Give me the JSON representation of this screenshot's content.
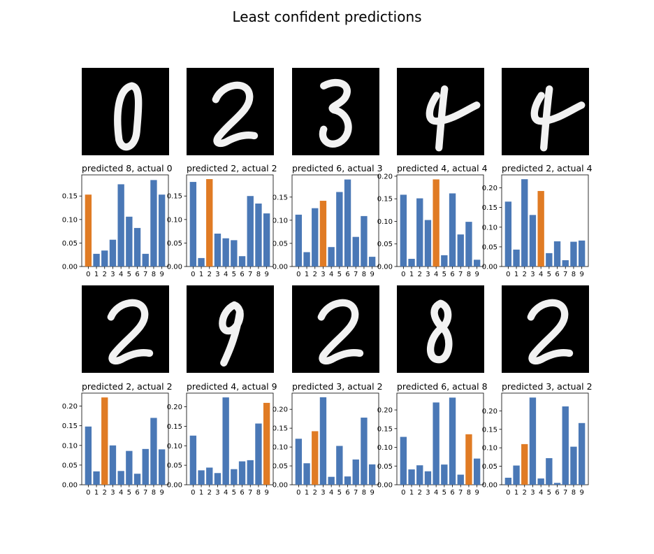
{
  "figure_title": "Least confident predictions",
  "colors": {
    "bar": "#4a78b6",
    "highlight": "#e07b24",
    "image_bg": "#000000",
    "stroke": "#f2f2f2"
  },
  "chart_data": [
    {
      "type": "bar",
      "title": "predicted 8, actual 0",
      "digit_image": "0",
      "predicted": 8,
      "actual": 0,
      "categories": [
        "0",
        "1",
        "2",
        "3",
        "4",
        "5",
        "6",
        "7",
        "8",
        "9"
      ],
      "values": [
        0.153,
        0.027,
        0.034,
        0.057,
        0.175,
        0.106,
        0.082,
        0.027,
        0.184,
        0.153
      ],
      "ylim": [
        0,
        0.195
      ],
      "yticks": [
        "0.00",
        "0.05",
        "0.10",
        "0.15"
      ],
      "highlight_index": 0
    },
    {
      "type": "bar",
      "title": "predicted 2, actual 2",
      "digit_image": "2",
      "predicted": 2,
      "actual": 2,
      "categories": [
        "0",
        "1",
        "2",
        "3",
        "4",
        "5",
        "6",
        "7",
        "8",
        "9"
      ],
      "values": [
        0.18,
        0.018,
        0.186,
        0.07,
        0.06,
        0.056,
        0.022,
        0.15,
        0.134,
        0.113
      ],
      "ylim": [
        0,
        0.195
      ],
      "yticks": [
        "0.00",
        "0.05",
        "0.10",
        "0.15"
      ],
      "highlight_index": 2
    },
    {
      "type": "bar",
      "title": "predicted 6, actual 3",
      "digit_image": "3",
      "predicted": 6,
      "actual": 3,
      "categories": [
        "0",
        "1",
        "2",
        "3",
        "4",
        "5",
        "6",
        "7",
        "8",
        "9"
      ],
      "values": [
        0.112,
        0.031,
        0.126,
        0.142,
        0.042,
        0.161,
        0.188,
        0.064,
        0.109,
        0.021
      ],
      "ylim": [
        0,
        0.198
      ],
      "yticks": [
        "0.00",
        "0.05",
        "0.10",
        "0.15"
      ],
      "highlight_index": 3
    },
    {
      "type": "bar",
      "title": "predicted 4, actual 4",
      "digit_image": "4",
      "predicted": 4,
      "actual": 4,
      "categories": [
        "0",
        "1",
        "2",
        "3",
        "4",
        "5",
        "6",
        "7",
        "8",
        "9"
      ],
      "values": [
        0.159,
        0.017,
        0.151,
        0.103,
        0.193,
        0.025,
        0.162,
        0.071,
        0.099,
        0.015
      ],
      "ylim": [
        0,
        0.203
      ],
      "yticks": [
        "0.00",
        "0.05",
        "0.10",
        "0.15",
        "0.20"
      ],
      "highlight_index": 4
    },
    {
      "type": "bar",
      "title": "predicted 2, actual 4",
      "digit_image": "4",
      "predicted": 2,
      "actual": 4,
      "categories": [
        "0",
        "1",
        "2",
        "3",
        "4",
        "5",
        "6",
        "7",
        "8",
        "9"
      ],
      "values": [
        0.165,
        0.043,
        0.222,
        0.131,
        0.192,
        0.034,
        0.064,
        0.016,
        0.063,
        0.066
      ],
      "ylim": [
        0,
        0.233
      ],
      "yticks": [
        "0.00",
        "0.05",
        "0.10",
        "0.15",
        "0.20"
      ],
      "highlight_index": 4
    },
    {
      "type": "bar",
      "title": "predicted 2, actual 2",
      "digit_image": "2",
      "predicted": 2,
      "actual": 2,
      "categories": [
        "0",
        "1",
        "2",
        "3",
        "4",
        "5",
        "6",
        "7",
        "8",
        "9"
      ],
      "values": [
        0.148,
        0.034,
        0.222,
        0.1,
        0.035,
        0.086,
        0.028,
        0.091,
        0.17,
        0.09
      ],
      "ylim": [
        0,
        0.233
      ],
      "yticks": [
        "0.00",
        "0.05",
        "0.10",
        "0.15",
        "0.20"
      ],
      "highlight_index": 2
    },
    {
      "type": "bar",
      "title": "predicted 4, actual 9",
      "digit_image": "9",
      "predicted": 4,
      "actual": 9,
      "categories": [
        "0",
        "1",
        "2",
        "3",
        "4",
        "5",
        "6",
        "7",
        "8",
        "9"
      ],
      "values": [
        0.126,
        0.037,
        0.044,
        0.03,
        0.224,
        0.04,
        0.06,
        0.063,
        0.157,
        0.21
      ],
      "ylim": [
        0,
        0.235
      ],
      "yticks": [
        "0.00",
        "0.05",
        "0.10",
        "0.15",
        "0.20"
      ],
      "highlight_index": 9
    },
    {
      "type": "bar",
      "title": "predicted 3, actual 2",
      "digit_image": "2",
      "predicted": 3,
      "actual": 2,
      "categories": [
        "0",
        "1",
        "2",
        "3",
        "4",
        "5",
        "6",
        "7",
        "8",
        "9"
      ],
      "values": [
        0.122,
        0.057,
        0.142,
        0.232,
        0.021,
        0.103,
        0.022,
        0.067,
        0.178,
        0.054
      ],
      "ylim": [
        0,
        0.243
      ],
      "yticks": [
        "0.00",
        "0.05",
        "0.10",
        "0.15",
        "0.20"
      ],
      "highlight_index": 2
    },
    {
      "type": "bar",
      "title": "predicted 6, actual 8",
      "digit_image": "8",
      "predicted": 6,
      "actual": 8,
      "categories": [
        "0",
        "1",
        "2",
        "3",
        "4",
        "5",
        "6",
        "7",
        "8",
        "9"
      ],
      "values": [
        0.128,
        0.041,
        0.052,
        0.036,
        0.22,
        0.054,
        0.233,
        0.027,
        0.135,
        0.07
      ],
      "ylim": [
        0,
        0.245
      ],
      "yticks": [
        "0.00",
        "0.05",
        "0.10",
        "0.15",
        "0.20"
      ],
      "highlight_index": 8
    },
    {
      "type": "bar",
      "title": "predicted 3, actual 2",
      "digit_image": "2",
      "predicted": 3,
      "actual": 2,
      "categories": [
        "0",
        "1",
        "2",
        "3",
        "4",
        "5",
        "6",
        "7",
        "8",
        "9"
      ],
      "values": [
        0.019,
        0.052,
        0.11,
        0.236,
        0.017,
        0.072,
        0.005,
        0.212,
        0.103,
        0.167
      ],
      "ylim": [
        0,
        0.248
      ],
      "yticks": [
        "0.00",
        "0.05",
        "0.10",
        "0.15",
        "0.20"
      ],
      "highlight_index": 2
    }
  ]
}
